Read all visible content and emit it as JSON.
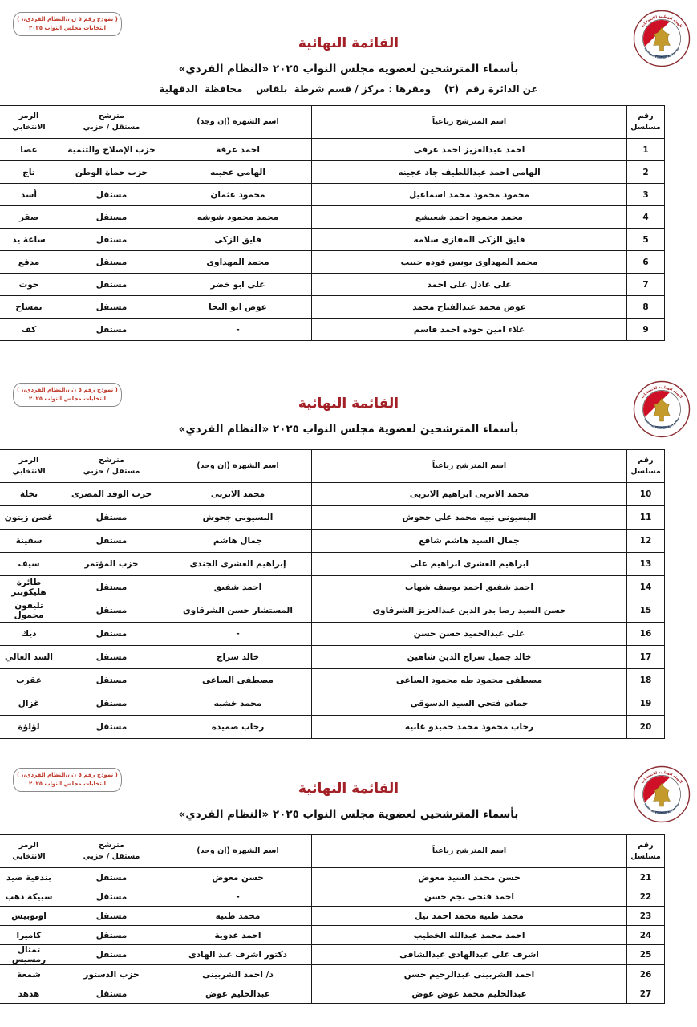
{
  "document": {
    "title": "القائمة النهائية",
    "subtitle": "بأسماء المترشحين لعضوية مجلس النواب ٢٠٢٥ «النظام الفردي»",
    "district_line": "عن الدائرة رقم  (٣)    ومقرها : مركز / قسم شرطة  بلقاس    محافظة  الدقهلية",
    "stamp": {
      "line1": "( نموذج رقم ٥ ن ،،النظام الفردي،، )",
      "line2": "انتخابات مجلس النواب ٢٠٢٥"
    },
    "logo": {
      "label_top": "الهيئة الوطنية للانتخابات",
      "label_bottom": "National Election Authority"
    }
  },
  "colors": {
    "title_red": "#a32026",
    "stamp_red": "#c0392b",
    "table_border": "#1a1a1a",
    "flag_red": "#ce1126",
    "eagle_gold": "#c49a2c",
    "seal_navy": "#1e3a5f"
  },
  "table": {
    "headers": {
      "serial": "رقم\nمسلسل",
      "name": "اسم المترشح رباعياً",
      "famous": "اسم الشهرة (إن وجد)",
      "party": "مترشح\nمستقل / حزبي",
      "symbol": "الرمز\nالانتخابي"
    }
  },
  "sections": [
    {
      "show_district_line": true,
      "rows": [
        {
          "serial": "1",
          "name": "احمد عبدالعزيز احمد عرفى",
          "famous": "احمد عرفة",
          "party": "حزب الإصلاح والتنمية",
          "symbol": "عصا"
        },
        {
          "serial": "2",
          "name": "الهامى احمد عبداللطيف جاد عجينه",
          "famous": "الهامى عجينه",
          "party": "حزب حماة الوطن",
          "symbol": "تاج"
        },
        {
          "serial": "3",
          "name": "محمود محمود محمد اسماعيل",
          "famous": "محمود عثمان",
          "party": "مستقل",
          "symbol": "أسد"
        },
        {
          "serial": "4",
          "name": "محمد محمود احمد شعيشع",
          "famous": "محمد محمود شوشه",
          "party": "مستقل",
          "symbol": "صقر"
        },
        {
          "serial": "5",
          "name": "فايق الزكى المقازى سلامه",
          "famous": "فايق الزكى",
          "party": "مستقل",
          "symbol": "ساعة يد"
        },
        {
          "serial": "6",
          "name": "محمد المهداوى يونس فوده حبيب",
          "famous": "محمد المهداوى",
          "party": "مستقل",
          "symbol": "مدفع"
        },
        {
          "serial": "7",
          "name": "على عادل على احمد",
          "famous": "على ابو خضر",
          "party": "مستقل",
          "symbol": "حوت"
        },
        {
          "serial": "8",
          "name": "عوض محمد عبدالفتاح محمد",
          "famous": "عوض ابو النجا",
          "party": "مستقل",
          "symbol": "تمساح"
        },
        {
          "serial": "9",
          "name": "علاء امين جوده احمد قاسم",
          "famous": "-",
          "party": "مستقل",
          "symbol": "كف"
        }
      ]
    },
    {
      "show_district_line": false,
      "rows": [
        {
          "serial": "10",
          "name": "محمد الاتربى ابراهيم الاتربى",
          "famous": "محمد الاتربى",
          "party": "حزب الوفد المصرى",
          "symbol": "نخلة"
        },
        {
          "serial": "11",
          "name": "البسيونى نبيه محمد على جحوش",
          "famous": "البسيونى جحوش",
          "party": "مستقل",
          "symbol": "غصن زيتون"
        },
        {
          "serial": "12",
          "name": "جمال السيد هاشم شافع",
          "famous": "جمال هاشم",
          "party": "مستقل",
          "symbol": "سفينة"
        },
        {
          "serial": "13",
          "name": "ابراهيم العشرى ابراهيم على",
          "famous": "إبراهيم العشرى الجندى",
          "party": "حزب المؤتمر",
          "symbol": "سيف"
        },
        {
          "serial": "14",
          "name": "احمد شفيق احمد يوسف شهاب",
          "famous": "احمد شفيق",
          "party": "مستقل",
          "symbol": "طائرة هليكوبتر"
        },
        {
          "serial": "15",
          "name": "حسن السيد رضا بدر الدين عبدالعزيز الشرقاوى",
          "famous": "المستشار حسن الشرقاوى",
          "party": "مستقل",
          "symbol": "تليفون محمول"
        },
        {
          "serial": "16",
          "name": "على عبدالحميد حسن حسن",
          "famous": "-",
          "party": "مستقل",
          "symbol": "ديك"
        },
        {
          "serial": "17",
          "name": "خالد جميل سراج الدين شاهين",
          "famous": "خالد سراج",
          "party": "مستقل",
          "symbol": "السد العالي"
        },
        {
          "serial": "18",
          "name": "مصطفى محمود طه محمود الساعى",
          "famous": "مصطفى الساعى",
          "party": "مستقل",
          "symbol": "عقرب"
        },
        {
          "serial": "19",
          "name": "حماده فتحي السيد الدسوقى",
          "famous": "محمد خشبه",
          "party": "مستقل",
          "symbol": "غزال"
        },
        {
          "serial": "20",
          "name": "رحاب محمود محمد حميدو غانيه",
          "famous": "رحاب صميده",
          "party": "مستقل",
          "symbol": "لؤلؤة"
        }
      ]
    },
    {
      "show_district_line": false,
      "rows": [
        {
          "serial": "21",
          "name": "حسن محمد السيد معوض",
          "famous": "حسن معوض",
          "party": "مستقل",
          "symbol": "بندقية صيد"
        },
        {
          "serial": "22",
          "name": "احمد فتحى نجم حسن",
          "famous": "-",
          "party": "مستقل",
          "symbol": "سبيكة ذهب"
        },
        {
          "serial": "23",
          "name": "محمد طنيه محمد احمد نيل",
          "famous": "محمد طنيه",
          "party": "مستقل",
          "symbol": "اوتوبيس"
        },
        {
          "serial": "24",
          "name": "احمد محمد عبدالله الخطيب",
          "famous": "احمد عدوية",
          "party": "مستقل",
          "symbol": "كاميرا"
        },
        {
          "serial": "25",
          "name": "اشرف على عبدالهادى عبدالشافى",
          "famous": "دكتور اشرف عبد الهادى",
          "party": "مستقل",
          "symbol": "تمثال رمسيس"
        },
        {
          "serial": "26",
          "name": "احمد الشربينى عبدالرحيم حسن",
          "famous": "د/ احمد الشربينى",
          "party": "حزب الدستور",
          "symbol": "شمعة"
        },
        {
          "serial": "27",
          "name": "عبدالحليم محمد عوض عوض",
          "famous": "عبدالحليم عوض",
          "party": "مستقل",
          "symbol": "هدهد"
        }
      ]
    }
  ]
}
